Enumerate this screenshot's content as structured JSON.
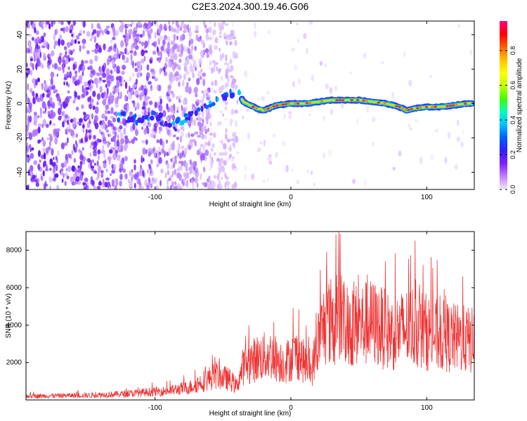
{
  "title": "C2E3.2024.300.19.46.G06",
  "chart_data": [
    {
      "type": "heatmap",
      "xlabel": "Height of straight line (km)",
      "ylabel": "Frequency (Hz)",
      "xlim": [
        -195,
        135
      ],
      "ylim": [
        -50,
        48
      ],
      "xticks": [
        -100,
        0,
        100
      ],
      "yticks": [
        -40,
        -20,
        0,
        20,
        40
      ],
      "colorbar": {
        "label": "Normalized spectral amplitude",
        "range": [
          0,
          0.97
        ],
        "ticks": [
          "0.0",
          "0.2",
          "0.4",
          "0.6",
          "0.8"
        ],
        "tick_values": [
          0,
          0.2,
          0.4,
          0.6,
          0.8
        ],
        "colors": [
          "#f4e8ff",
          "#c080ff",
          "#8020ff",
          "#3020ff",
          "#0060ff",
          "#00c0ff",
          "#00ffc0",
          "#40ff00",
          "#c0ff00",
          "#ffff00",
          "#ffc000",
          "#ff6000",
          "#ff0000",
          "#ff0080"
        ]
      },
      "ridge": {
        "x": [
          -125,
          -110,
          -100,
          -90,
          -85,
          -80,
          -70,
          -60,
          -50,
          -40,
          -35,
          -30,
          -25,
          -20,
          -10,
          0,
          10,
          20,
          30,
          40,
          50,
          60,
          70,
          80,
          85,
          90,
          100,
          110,
          120,
          130
        ],
        "y": [
          -8,
          -9,
          -7,
          -12,
          -13,
          -10,
          -5,
          0,
          3,
          8,
          1,
          -1,
          -3,
          -4,
          -1,
          0,
          0,
          1,
          2,
          2,
          2,
          1,
          0,
          -2,
          -4,
          -3,
          -2,
          -2,
          -1,
          0
        ]
      }
    },
    {
      "type": "line",
      "xlabel": "Height of straight line (km)",
      "ylabel": "SNR (10 * v/v)",
      "xlim": [
        -195,
        135
      ],
      "ylim": [
        0,
        9000
      ],
      "xticks": [
        -100,
        0,
        100
      ],
      "yticks": [
        2000,
        4000,
        6000,
        8000
      ],
      "color": "#ee3333",
      "envelope": {
        "x": [
          -195,
          -150,
          -120,
          -90,
          -75,
          -65,
          -55,
          -45,
          -40,
          -35,
          -25,
          -15,
          -5,
          5,
          15,
          20,
          25,
          35,
          45,
          60,
          75,
          90,
          105,
          120,
          135
        ],
        "y": [
          250,
          300,
          400,
          600,
          800,
          1200,
          1600,
          1300,
          900,
          2200,
          2700,
          2900,
          2400,
          3000,
          1800,
          3800,
          5000,
          5300,
          4800,
          5000,
          4300,
          4800,
          4200,
          4000,
          3800
        ]
      }
    }
  ]
}
